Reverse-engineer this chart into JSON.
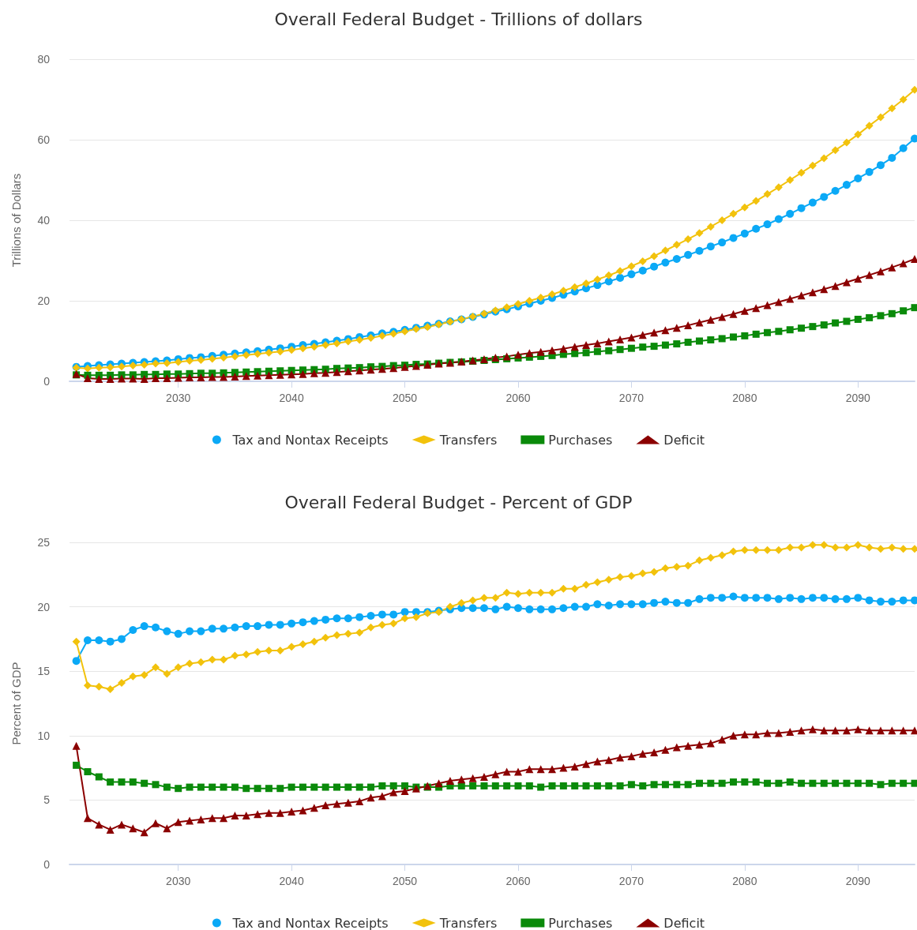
{
  "chart_data": [
    {
      "type": "line",
      "title": "Overall Federal Budget - Trillions of dollars",
      "ylabel": "Trillions of Dollars",
      "x": [
        2021,
        2022,
        2023,
        2024,
        2025,
        2026,
        2027,
        2028,
        2029,
        2030,
        2031,
        2032,
        2033,
        2034,
        2035,
        2036,
        2037,
        2038,
        2039,
        2040,
        2041,
        2042,
        2043,
        2044,
        2045,
        2046,
        2047,
        2048,
        2049,
        2050,
        2051,
        2052,
        2053,
        2054,
        2055,
        2056,
        2057,
        2058,
        2059,
        2060,
        2061,
        2062,
        2063,
        2064,
        2065,
        2066,
        2067,
        2068,
        2069,
        2070,
        2071,
        2072,
        2073,
        2074,
        2075,
        2076,
        2077,
        2078,
        2079,
        2080,
        2081,
        2082,
        2083,
        2084,
        2085,
        2086,
        2087,
        2088,
        2089,
        2090,
        2091,
        2092,
        2093,
        2094,
        2095
      ],
      "xlim": [
        2020.4,
        2095
      ],
      "xticks": [
        2030,
        2040,
        2050,
        2060,
        2070,
        2080,
        2090
      ],
      "ylim": [
        0,
        80
      ],
      "yticks": [
        0,
        20,
        40,
        60,
        80
      ],
      "grid": "y",
      "legend": "bottom",
      "series": [
        {
          "name": "Tax and Nontax Receipts",
          "color": "#0ba9f6",
          "marker": "circle",
          "values": [
            3.6,
            3.8,
            4.0,
            4.2,
            4.4,
            4.6,
            4.8,
            5.0,
            5.2,
            5.5,
            5.8,
            6.0,
            6.3,
            6.6,
            6.9,
            7.2,
            7.5,
            7.9,
            8.2,
            8.6,
            9.0,
            9.3,
            9.7,
            10.1,
            10.5,
            11.0,
            11.4,
            11.9,
            12.3,
            12.8,
            13.3,
            13.8,
            14.3,
            14.9,
            15.4,
            16.0,
            16.6,
            17.3,
            17.9,
            18.6,
            19.3,
            20.0,
            20.7,
            21.5,
            22.3,
            23.1,
            23.9,
            24.8,
            25.7,
            26.6,
            27.5,
            28.5,
            29.5,
            30.4,
            31.4,
            32.4,
            33.5,
            34.5,
            35.6,
            36.7,
            37.9,
            39.0,
            40.3,
            41.6,
            43.0,
            44.4,
            45.8,
            47.3,
            48.8,
            50.4,
            52.0,
            53.7,
            55.5,
            57.9,
            60.3
          ]
        },
        {
          "name": "Transfers",
          "color": "#f2c20c",
          "marker": "diamond",
          "values": [
            3.4,
            3.2,
            3.4,
            3.5,
            3.7,
            3.9,
            4.1,
            4.4,
            4.5,
            4.8,
            5.1,
            5.3,
            5.6,
            5.9,
            6.2,
            6.5,
            6.8,
            7.1,
            7.4,
            7.8,
            8.2,
            8.6,
            9.0,
            9.4,
            9.9,
            10.3,
            10.8,
            11.3,
            11.8,
            12.4,
            13.0,
            13.5,
            14.1,
            14.8,
            15.4,
            16.1,
            16.8,
            17.6,
            18.4,
            19.2,
            20.0,
            20.8,
            21.6,
            22.5,
            23.4,
            24.3,
            25.3,
            26.3,
            27.4,
            28.6,
            29.8,
            31.1,
            32.5,
            33.9,
            35.3,
            36.8,
            38.4,
            40.0,
            41.6,
            43.2,
            44.8,
            46.5,
            48.2,
            50.0,
            51.8,
            53.6,
            55.4,
            57.4,
            59.3,
            61.3,
            63.5,
            65.6,
            67.8,
            70.0,
            72.4
          ]
        },
        {
          "name": "Purchases",
          "color": "#0a8a0a",
          "marker": "square",
          "values": [
            1.6,
            1.5,
            1.5,
            1.5,
            1.6,
            1.6,
            1.7,
            1.7,
            1.8,
            1.8,
            1.9,
            2.0,
            2.0,
            2.1,
            2.2,
            2.3,
            2.4,
            2.5,
            2.6,
            2.7,
            2.8,
            2.9,
            3.0,
            3.2,
            3.3,
            3.4,
            3.6,
            3.7,
            3.9,
            4.0,
            4.2,
            4.3,
            4.5,
            4.7,
            4.8,
            5.0,
            5.2,
            5.4,
            5.6,
            5.8,
            6.0,
            6.2,
            6.4,
            6.7,
            6.9,
            7.1,
            7.4,
            7.6,
            7.9,
            8.2,
            8.5,
            8.7,
            9.0,
            9.3,
            9.7,
            10.0,
            10.3,
            10.6,
            11.0,
            11.3,
            11.7,
            12.1,
            12.4,
            12.8,
            13.2,
            13.6,
            14.0,
            14.5,
            14.9,
            15.4,
            15.8,
            16.3,
            16.8,
            17.5,
            18.3
          ]
        },
        {
          "name": "Deficit",
          "color": "#8b0000",
          "marker": "triangle",
          "values": [
            1.8,
            0.8,
            0.6,
            0.6,
            0.7,
            0.7,
            0.6,
            0.8,
            0.8,
            0.9,
            1.0,
            1.0,
            1.1,
            1.1,
            1.2,
            1.3,
            1.4,
            1.5,
            1.6,
            1.7,
            1.8,
            2.0,
            2.1,
            2.3,
            2.5,
            2.7,
            2.9,
            3.1,
            3.3,
            3.6,
            3.8,
            4.1,
            4.4,
            4.6,
            4.9,
            5.2,
            5.5,
            5.9,
            6.2,
            6.6,
            7.0,
            7.3,
            7.7,
            8.1,
            8.6,
            9.0,
            9.4,
            9.9,
            10.4,
            10.9,
            11.5,
            12.1,
            12.7,
            13.3,
            13.9,
            14.6,
            15.3,
            16.0,
            16.7,
            17.5,
            18.2,
            18.9,
            19.7,
            20.5,
            21.3,
            22.1,
            22.9,
            23.7,
            24.6,
            25.5,
            26.4,
            27.3,
            28.3,
            29.3,
            30.4
          ]
        }
      ]
    },
    {
      "type": "line",
      "title": "Overall Federal Budget - Percent of GDP",
      "ylabel": "Percent of GDP",
      "x": [
        2021,
        2022,
        2023,
        2024,
        2025,
        2026,
        2027,
        2028,
        2029,
        2030,
        2031,
        2032,
        2033,
        2034,
        2035,
        2036,
        2037,
        2038,
        2039,
        2040,
        2041,
        2042,
        2043,
        2044,
        2045,
        2046,
        2047,
        2048,
        2049,
        2050,
        2051,
        2052,
        2053,
        2054,
        2055,
        2056,
        2057,
        2058,
        2059,
        2060,
        2061,
        2062,
        2063,
        2064,
        2065,
        2066,
        2067,
        2068,
        2069,
        2070,
        2071,
        2072,
        2073,
        2074,
        2075,
        2076,
        2077,
        2078,
        2079,
        2080,
        2081,
        2082,
        2083,
        2084,
        2085,
        2086,
        2087,
        2088,
        2089,
        2090,
        2091,
        2092,
        2093,
        2094,
        2095
      ],
      "xlim": [
        2020.4,
        2095
      ],
      "xticks": [
        2030,
        2040,
        2050,
        2060,
        2070,
        2080,
        2090
      ],
      "ylim": [
        0,
        25
      ],
      "yticks": [
        0,
        5,
        10,
        15,
        20,
        25
      ],
      "grid": "y",
      "legend": "bottom",
      "series": [
        {
          "name": "Tax and Nontax Receipts",
          "color": "#0ba9f6",
          "marker": "circle",
          "values": [
            15.8,
            17.4,
            17.4,
            17.3,
            17.5,
            18.2,
            18.5,
            18.4,
            18.1,
            17.9,
            18.1,
            18.1,
            18.3,
            18.3,
            18.4,
            18.5,
            18.5,
            18.6,
            18.6,
            18.7,
            18.8,
            18.9,
            19.0,
            19.1,
            19.1,
            19.2,
            19.3,
            19.4,
            19.4,
            19.6,
            19.6,
            19.6,
            19.7,
            19.8,
            19.9,
            19.9,
            19.9,
            19.8,
            20.0,
            19.9,
            19.8,
            19.8,
            19.8,
            19.9,
            20.0,
            20.0,
            20.2,
            20.1,
            20.2,
            20.2,
            20.2,
            20.3,
            20.4,
            20.3,
            20.3,
            20.6,
            20.7,
            20.7,
            20.8,
            20.7,
            20.7,
            20.7,
            20.6,
            20.7,
            20.6,
            20.7,
            20.7,
            20.6,
            20.6,
            20.7,
            20.5,
            20.4,
            20.4,
            20.5,
            20.5
          ]
        },
        {
          "name": "Transfers",
          "color": "#f2c20c",
          "marker": "diamond",
          "values": [
            17.3,
            13.9,
            13.8,
            13.6,
            14.1,
            14.6,
            14.7,
            15.3,
            14.8,
            15.3,
            15.6,
            15.7,
            15.9,
            15.9,
            16.2,
            16.3,
            16.5,
            16.6,
            16.6,
            16.9,
            17.1,
            17.3,
            17.6,
            17.8,
            17.9,
            18.0,
            18.4,
            18.6,
            18.7,
            19.1,
            19.2,
            19.5,
            19.6,
            20.0,
            20.3,
            20.5,
            20.7,
            20.7,
            21.1,
            21.0,
            21.1,
            21.1,
            21.1,
            21.4,
            21.4,
            21.7,
            21.9,
            22.1,
            22.3,
            22.4,
            22.6,
            22.7,
            23.0,
            23.1,
            23.2,
            23.6,
            23.8,
            24.0,
            24.3,
            24.4,
            24.4,
            24.4,
            24.4,
            24.6,
            24.6,
            24.8,
            24.8,
            24.6,
            24.6,
            24.8,
            24.6,
            24.5,
            24.6,
            24.5,
            24.5
          ]
        },
        {
          "name": "Purchases",
          "color": "#0a8a0a",
          "marker": "square",
          "values": [
            7.7,
            7.2,
            6.8,
            6.4,
            6.4,
            6.4,
            6.3,
            6.2,
            6.0,
            5.9,
            6.0,
            6.0,
            6.0,
            6.0,
            6.0,
            5.9,
            5.9,
            5.9,
            5.9,
            6.0,
            6.0,
            6.0,
            6.0,
            6.0,
            6.0,
            6.0,
            6.0,
            6.1,
            6.1,
            6.1,
            6.0,
            6.0,
            6.0,
            6.1,
            6.1,
            6.1,
            6.1,
            6.1,
            6.1,
            6.1,
            6.1,
            6.0,
            6.1,
            6.1,
            6.1,
            6.1,
            6.1,
            6.1,
            6.1,
            6.2,
            6.1,
            6.2,
            6.2,
            6.2,
            6.2,
            6.3,
            6.3,
            6.3,
            6.4,
            6.4,
            6.4,
            6.3,
            6.3,
            6.4,
            6.3,
            6.3,
            6.3,
            6.3,
            6.3,
            6.3,
            6.3,
            6.2,
            6.3,
            6.3,
            6.3
          ]
        },
        {
          "name": "Deficit",
          "color": "#8b0000",
          "marker": "triangle",
          "values": [
            9.2,
            3.6,
            3.1,
            2.7,
            3.1,
            2.8,
            2.5,
            3.2,
            2.8,
            3.3,
            3.4,
            3.5,
            3.6,
            3.6,
            3.8,
            3.8,
            3.9,
            4.0,
            4.0,
            4.1,
            4.2,
            4.4,
            4.6,
            4.7,
            4.8,
            4.9,
            5.2,
            5.3,
            5.6,
            5.7,
            5.9,
            6.1,
            6.3,
            6.5,
            6.6,
            6.7,
            6.8,
            7.0,
            7.2,
            7.2,
            7.4,
            7.4,
            7.4,
            7.5,
            7.6,
            7.8,
            8.0,
            8.1,
            8.3,
            8.4,
            8.6,
            8.7,
            8.9,
            9.1,
            9.2,
            9.3,
            9.4,
            9.7,
            10.0,
            10.1,
            10.1,
            10.2,
            10.2,
            10.3,
            10.4,
            10.5,
            10.4,
            10.4,
            10.4,
            10.5,
            10.4,
            10.4,
            10.4,
            10.4,
            10.4
          ]
        }
      ]
    }
  ]
}
